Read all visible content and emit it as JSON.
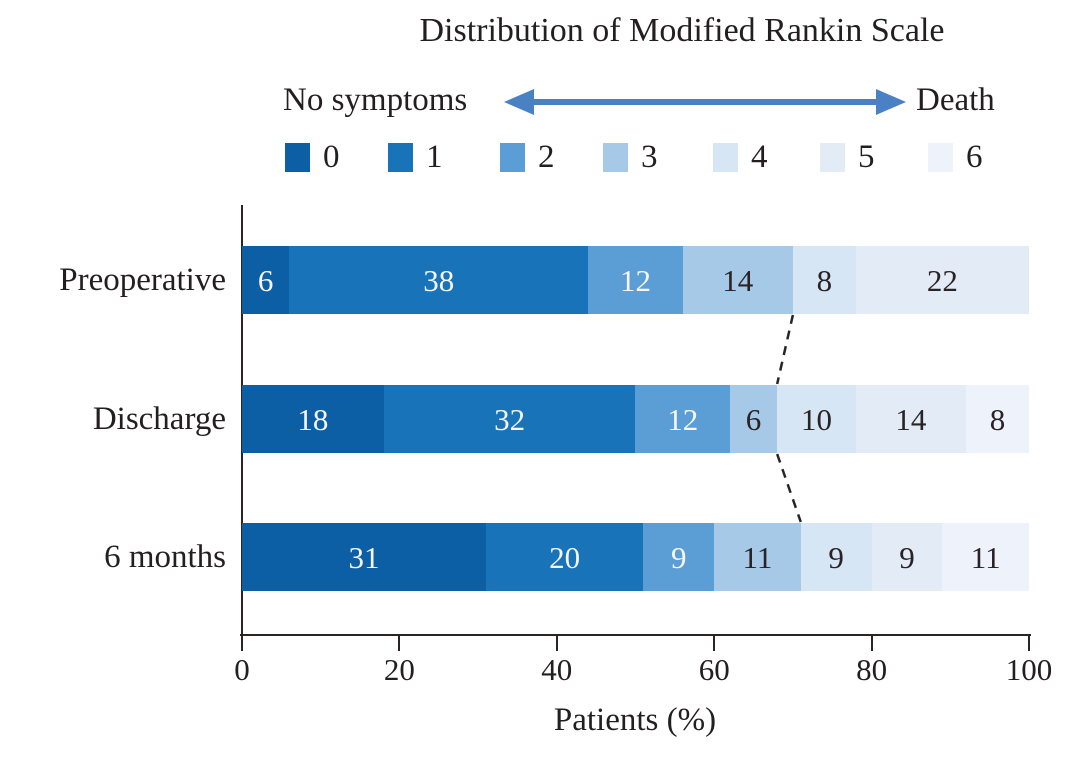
{
  "title": "Distribution of Modified Rankin Scale",
  "scale_annotation": {
    "left_label": "No symptoms",
    "right_label": "Death",
    "arrow_color": "#4a80c4"
  },
  "legend": {
    "entries": [
      "0",
      "1",
      "2",
      "3",
      "4",
      "5",
      "6"
    ]
  },
  "axis": {
    "tick_labels": [
      "0",
      "20",
      "40",
      "60",
      "80",
      "100"
    ],
    "tick_values": [
      0,
      20,
      40,
      60,
      80,
      100
    ],
    "xlabel": "Patients (%)"
  },
  "chart_data": {
    "type": "bar",
    "stacked": true,
    "orientation": "horizontal",
    "title": "Distribution of Modified Rankin Scale",
    "xlabel": "Patients (%)",
    "xlim": [
      0,
      100
    ],
    "grid": false,
    "legend_position": "top",
    "categories": [
      "Preoperative",
      "Discharge",
      "6 months"
    ],
    "series": [
      {
        "name": "0",
        "color": "#0d5fa5",
        "values": [
          6,
          18,
          31
        ]
      },
      {
        "name": "1",
        "color": "#1973b8",
        "values": [
          38,
          32,
          20
        ]
      },
      {
        "name": "2",
        "color": "#5b9ed6",
        "values": [
          12,
          12,
          9
        ]
      },
      {
        "name": "3",
        "color": "#a6c9e8",
        "values": [
          14,
          6,
          11
        ]
      },
      {
        "name": "4",
        "color": "#d7e6f5",
        "values": [
          8,
          10,
          9
        ]
      },
      {
        "name": "5",
        "color": "#e3ebf7",
        "values": [
          22,
          14,
          9
        ]
      },
      {
        "name": "6",
        "color": "#eef3fb",
        "values": [
          0,
          8,
          11
        ]
      }
    ],
    "annotations": {
      "dashed_connector_after_series": "3",
      "dashed_boundary_percents": [
        70,
        68,
        71
      ]
    }
  },
  "colors": {
    "axis": "#2b2425",
    "segment_label_light": "#f7f6f4",
    "segment_label_dark": "#2a2326"
  }
}
